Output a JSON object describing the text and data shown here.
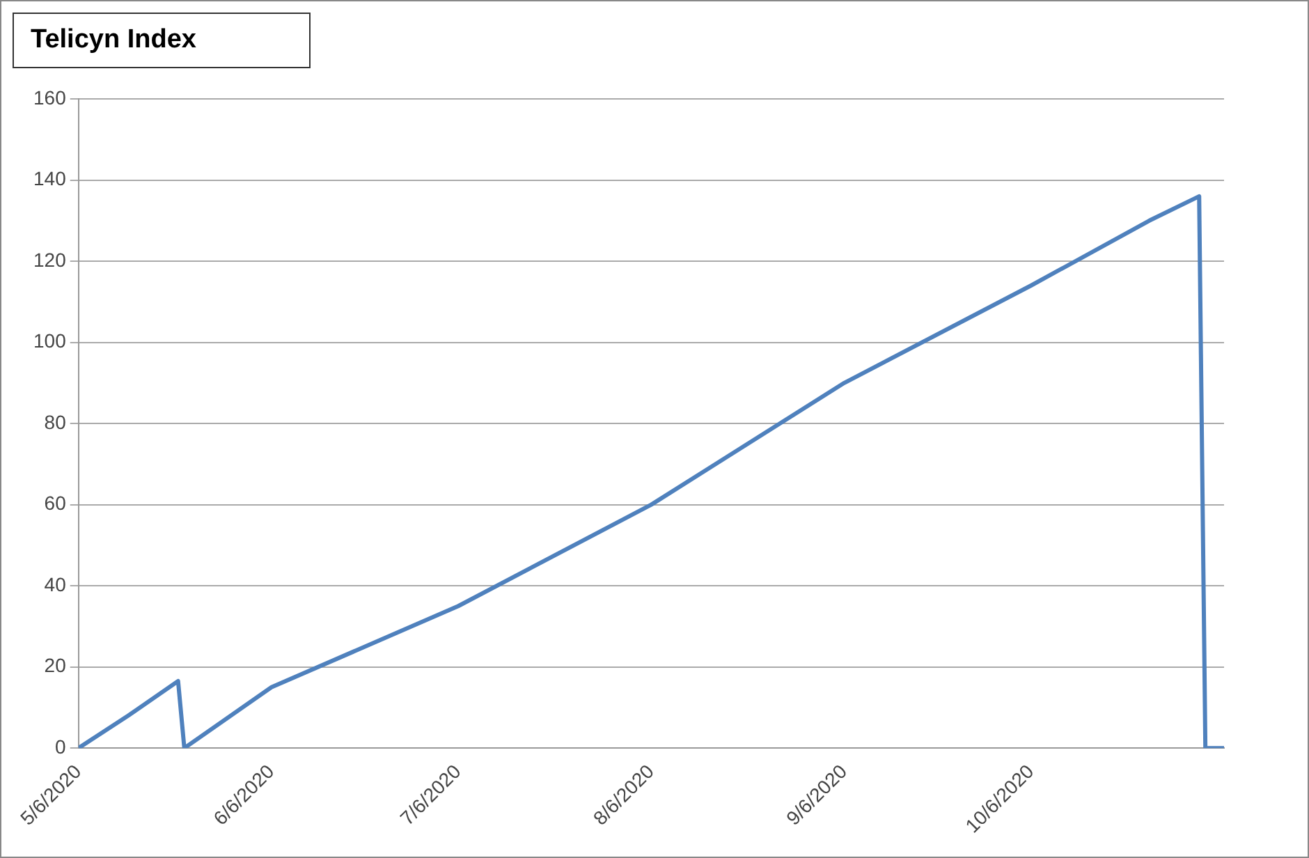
{
  "chart_data": {
    "type": "line",
    "title": "Telicyn Index",
    "x": [
      "2020-05-06",
      "2020-05-14",
      "2020-05-22",
      "2020-05-23",
      "2020-06-06",
      "2020-07-06",
      "2020-08-06",
      "2020-09-06",
      "2020-10-06",
      "2020-10-25",
      "2020-11-02",
      "2020-11-03",
      "2020-11-06"
    ],
    "series": [
      {
        "color": "#4f81bd",
        "values": [
          0,
          8,
          16.5,
          0,
          15,
          35,
          60,
          90,
          114,
          130,
          136,
          0,
          0
        ]
      }
    ],
    "xlim": [
      "2020-05-06",
      "2020-11-06"
    ],
    "xticks": [
      {
        "value": "2020-05-06",
        "label": "5/6/2020"
      },
      {
        "value": "2020-06-06",
        "label": "6/6/2020"
      },
      {
        "value": "2020-07-06",
        "label": "7/6/2020"
      },
      {
        "value": "2020-08-06",
        "label": "8/6/2020"
      },
      {
        "value": "2020-09-06",
        "label": "9/6/2020"
      },
      {
        "value": "2020-10-06",
        "label": "10/6/2020"
      }
    ],
    "ylim": [
      0,
      160
    ],
    "yticks": [
      0,
      20,
      40,
      60,
      80,
      100,
      120,
      140,
      160
    ],
    "grid": "y",
    "legend": false,
    "marker": "none",
    "line_style": "solid"
  }
}
